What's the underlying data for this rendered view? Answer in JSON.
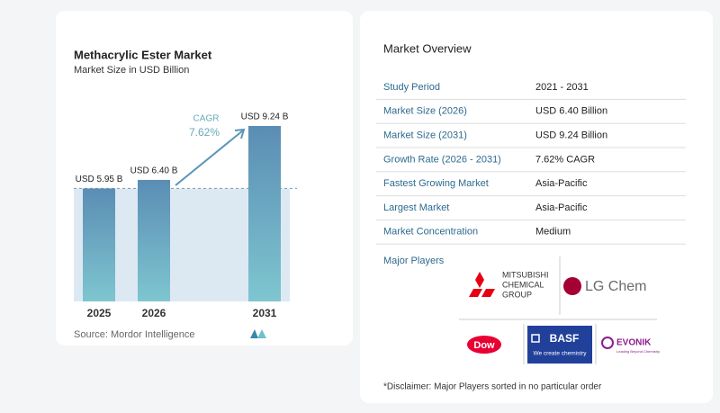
{
  "chart_data": {
    "type": "bar",
    "title": "Methacrylic Ester Market",
    "subtitle": "Market Size in USD Billion",
    "categories": [
      "2025",
      "2026",
      "2031"
    ],
    "values": [
      5.95,
      6.4,
      9.24
    ],
    "value_labels": [
      "USD 5.95 B",
      "USD 6.40 B",
      "USD 9.24 B"
    ],
    "annotation": {
      "label": "CAGR",
      "value": "7.62%"
    },
    "source": "Source: Mordor Intelligence"
  },
  "overview": {
    "title": "Market Overview",
    "rows": [
      [
        "Study Period",
        "2021 - 2031"
      ],
      [
        "Market Size (2026)",
        "USD 6.40 Billion"
      ],
      [
        "Market Size (2031)",
        "USD 9.24 Billion"
      ],
      [
        "Growth Rate (2026 - 2031)",
        "7.62% CAGR"
      ],
      [
        "Fastest Growing Market",
        "Asia-Pacific"
      ],
      [
        "Largest Market",
        "Asia-Pacific"
      ],
      [
        "Market Concentration",
        "Medium"
      ]
    ],
    "players_title": "Major Players",
    "players": {
      "mitsubishi": [
        "MITSUBISHI",
        "CHEMICAL",
        "GROUP"
      ],
      "lg": "LG Chem",
      "dow": "Dow",
      "basf": "BASF",
      "basf_tagline": "We create chemistry",
      "evonik": "EVONIK",
      "evonik_tagline": "Leading Beyond Chemistry"
    },
    "disclaimer": "*Disclaimer: Major Players sorted in no particular order"
  }
}
